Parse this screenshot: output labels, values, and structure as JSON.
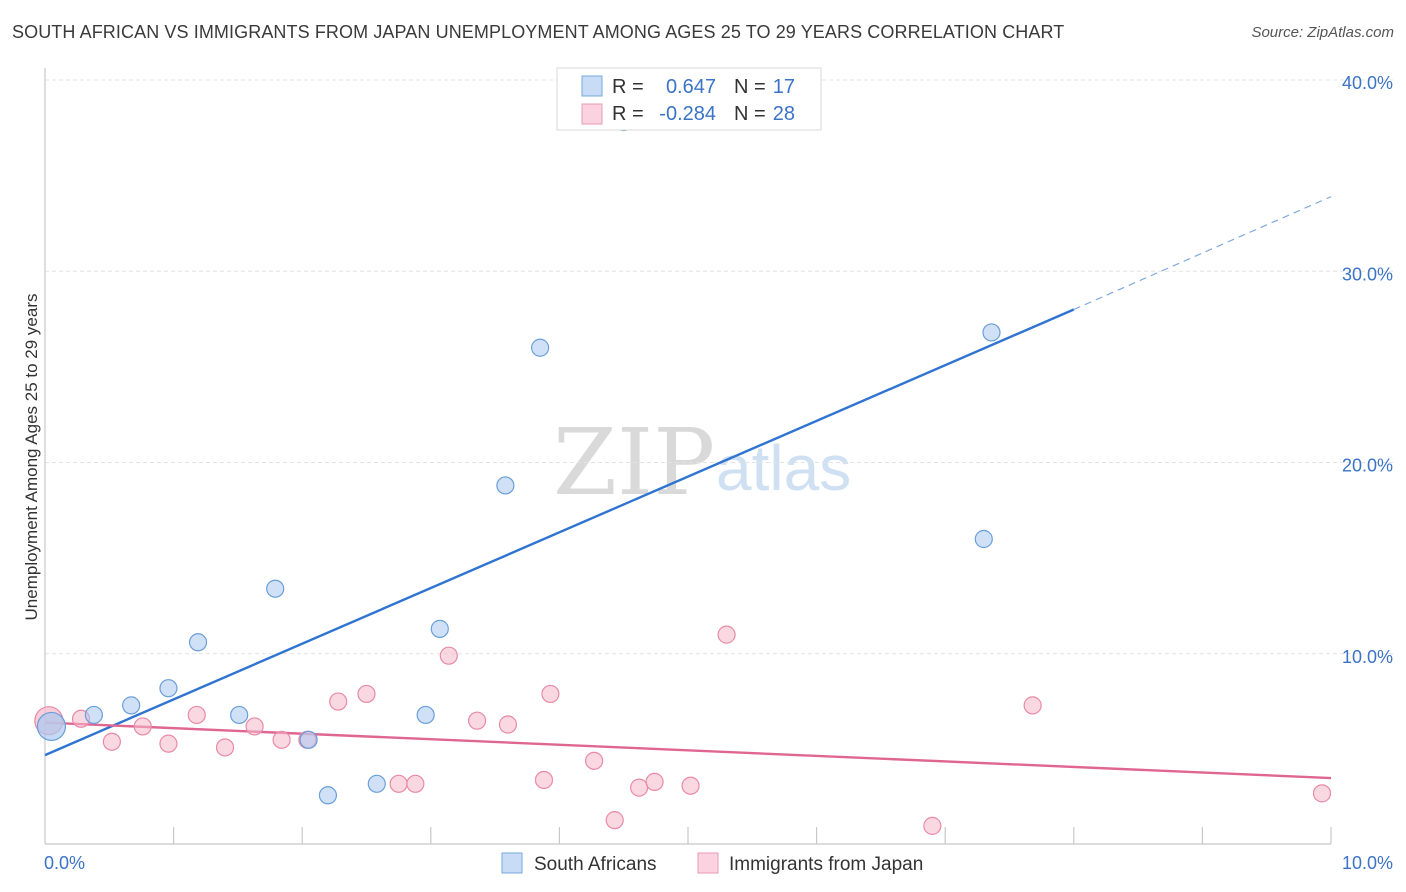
{
  "title": "SOUTH AFRICAN VS IMMIGRANTS FROM JAPAN UNEMPLOYMENT AMONG AGES 25 TO 29 YEARS CORRELATION CHART",
  "source": "Source: ZipAtlas.com",
  "watermark": {
    "zip": "ZIP",
    "atlas": "atlas"
  },
  "legend": {
    "rows": [
      {
        "r_label": "R =",
        "r_value": "0.647",
        "n_label": "N =",
        "n_value": "17",
        "color": "#a9c9f0"
      },
      {
        "r_label": "R =",
        "r_value": "-0.284",
        "n_label": "N =",
        "n_value": "28",
        "color": "#f6b8cb"
      }
    ]
  },
  "chart_data": {
    "type": "scatter",
    "xlabel": "",
    "ylabel": "Unemployment Among Ages 25 to 29 years",
    "xlim": [
      0,
      10
    ],
    "ylim": [
      0,
      40
    ],
    "x_tick_labels": {
      "min": "0.0%",
      "max": "10.0%"
    },
    "y_ticks": [
      {
        "value": 10,
        "label": "10.0%"
      },
      {
        "value": 20,
        "label": "20.0%"
      },
      {
        "value": 30,
        "label": "30.0%"
      },
      {
        "value": 40,
        "label": "40.0%"
      }
    ],
    "grid": "horizontal dashed",
    "series": [
      {
        "name": "South Africans",
        "color": "#a9c9f0",
        "stroke": "#6a9fd8",
        "line_color": "#2f74d0",
        "points": [
          [
            0.05,
            6.2
          ],
          [
            0.38,
            6.8
          ],
          [
            0.67,
            7.3
          ],
          [
            0.96,
            8.2
          ],
          [
            1.19,
            10.6
          ],
          [
            1.51,
            6.8
          ],
          [
            1.79,
            13.4
          ],
          [
            2.05,
            5.5
          ],
          [
            2.2,
            2.6
          ],
          [
            2.58,
            3.2
          ],
          [
            2.96,
            6.8
          ],
          [
            3.07,
            11.3
          ],
          [
            3.58,
            18.8
          ],
          [
            3.85,
            26.0
          ],
          [
            4.5,
            37.8
          ],
          [
            7.3,
            16.0
          ],
          [
            7.36,
            26.8
          ]
        ],
        "trend": {
          "x0": 0.0,
          "y0": 4.7,
          "x1": 8.0,
          "y1": 28.0,
          "dash_x1": 10.0,
          "dash_y1": 33.9
        }
      },
      {
        "name": "Immigrants from Japan",
        "color": "#f6b8cb",
        "stroke": "#e88aa8",
        "line_color": "#e06692",
        "points": [
          [
            0.03,
            6.5
          ],
          [
            0.28,
            6.6
          ],
          [
            0.52,
            5.4
          ],
          [
            0.76,
            6.2
          ],
          [
            0.96,
            5.3
          ],
          [
            1.18,
            6.8
          ],
          [
            1.4,
            5.1
          ],
          [
            1.63,
            6.2
          ],
          [
            1.84,
            5.5
          ],
          [
            2.04,
            5.5
          ],
          [
            2.28,
            7.5
          ],
          [
            2.5,
            7.9
          ],
          [
            2.75,
            3.2
          ],
          [
            2.88,
            3.2
          ],
          [
            3.14,
            9.9
          ],
          [
            3.36,
            6.5
          ],
          [
            3.6,
            6.3
          ],
          [
            3.88,
            3.4
          ],
          [
            3.93,
            7.9
          ],
          [
            4.27,
            4.4
          ],
          [
            4.43,
            1.3
          ],
          [
            4.62,
            3.0
          ],
          [
            4.74,
            3.3
          ],
          [
            5.02,
            3.1
          ],
          [
            5.3,
            11.0
          ],
          [
            6.9,
            1.0
          ],
          [
            7.68,
            7.3
          ],
          [
            9.93,
            2.7
          ]
        ],
        "trend": {
          "x0": 0.0,
          "y0": 6.4,
          "x1": 10.0,
          "y1": 3.5
        }
      }
    ],
    "legend": {
      "placement": "top-center"
    },
    "bottom_legend": {
      "placement": "bottom-center"
    }
  }
}
